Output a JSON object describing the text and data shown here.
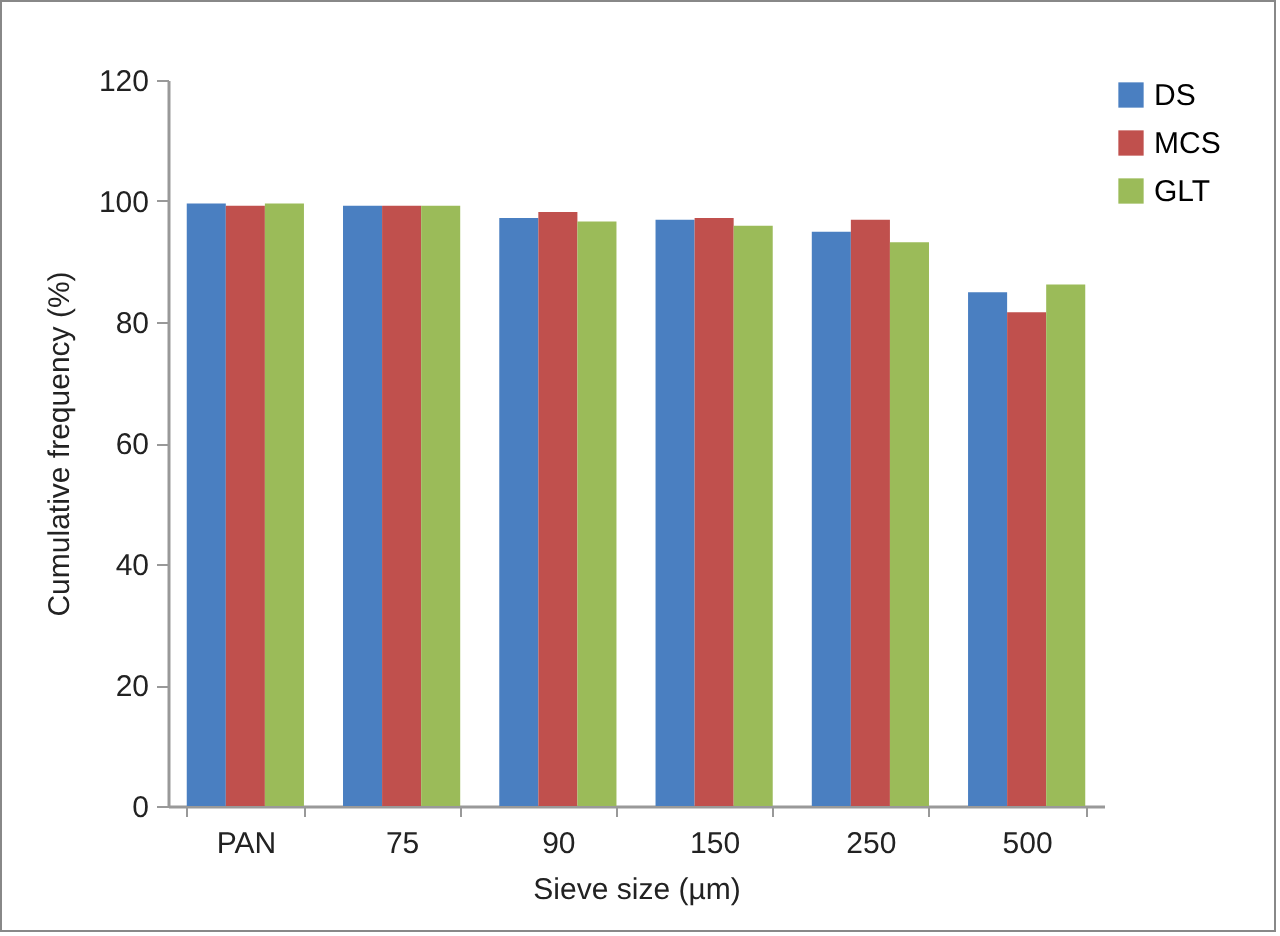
{
  "chart_data": {
    "type": "bar",
    "xlabel": "Sieve size (µm)",
    "ylabel": "Cumulative frequency (%)",
    "categories": [
      "PAN",
      "75",
      "90",
      "150",
      "250",
      "500"
    ],
    "series": [
      {
        "name": "DS",
        "color": "#4a7fc1",
        "values": [
          99.6,
          99.2,
          97.2,
          96.9,
          94.9,
          84.9
        ]
      },
      {
        "name": "MCS",
        "color": "#c0504d",
        "values": [
          99.2,
          99.2,
          98.2,
          97.2,
          96.9,
          81.6
        ]
      },
      {
        "name": "GLT",
        "color": "#9bbb59",
        "values": [
          99.6,
          99.2,
          96.6,
          95.9,
          93.2,
          86.2
        ]
      }
    ],
    "ylim": [
      0,
      120
    ],
    "yticks": [
      0,
      20,
      40,
      60,
      80,
      100,
      120
    ],
    "grid": false,
    "legend": "right"
  }
}
